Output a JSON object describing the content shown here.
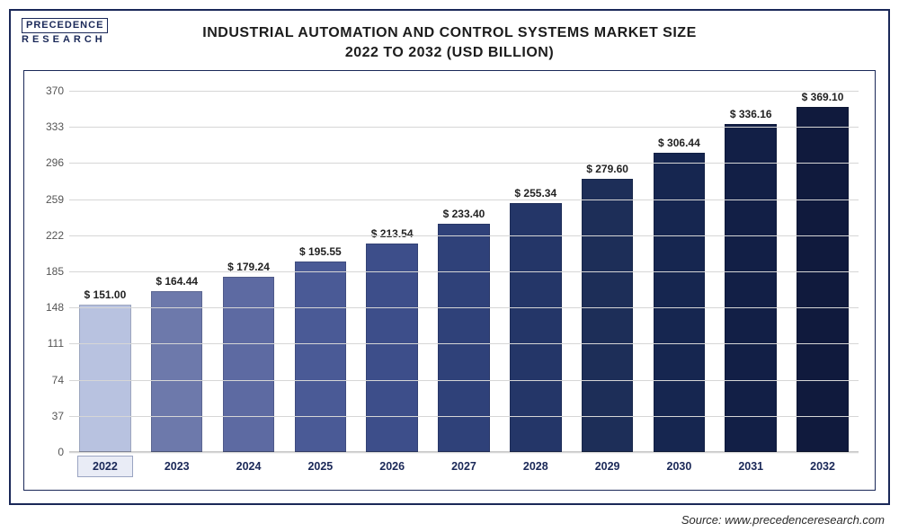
{
  "logo": {
    "line1": "PRECEDENCE",
    "line2": "RESEARCH"
  },
  "title": {
    "line1": "INDUSTRIAL AUTOMATION AND CONTROL SYSTEMS MARKET SIZE",
    "line2": "2022 TO 2032 (USD BILLION)"
  },
  "chart": {
    "type": "bar",
    "background_color": "#ffffff",
    "frame_border_color": "#1a2858",
    "grid_color": "#d6d6d6",
    "ylim": [
      0,
      370
    ],
    "yticks": [
      0,
      37,
      74,
      111,
      148,
      185,
      222,
      259,
      296,
      333,
      370
    ],
    "label_fontsize": 12,
    "value_prefix": "$ ",
    "value_fontsize": 12,
    "title_fontsize": 16,
    "bar_width": 0.72,
    "categories": [
      "2022",
      "2023",
      "2024",
      "2025",
      "2026",
      "2027",
      "2028",
      "2029",
      "2030",
      "2031",
      "2032"
    ],
    "values": [
      151.0,
      164.44,
      179.24,
      195.55,
      213.54,
      233.4,
      255.34,
      279.6,
      306.44,
      336.16,
      369.1
    ],
    "value_labels": [
      "$ 151.00",
      "$ 164.44",
      "$ 179.24",
      "$ 195.55",
      "$ 213.54",
      "$ 233.40",
      "$ 255.34",
      "$ 279.60",
      "$ 306.44",
      "$ 336.16",
      "$ 369.10"
    ],
    "bar_colors": [
      "#b8c2e0",
      "#6d79ab",
      "#5d6aa2",
      "#4a5a96",
      "#3d4e8a",
      "#2f4179",
      "#243668",
      "#1d2e58",
      "#162650",
      "#121f46",
      "#101a3d"
    ],
    "highlighted_category_index": 0,
    "x_box_bg": "#e9ecf6",
    "x_box_border": "#9aa4c2",
    "x_label_color": "#1a2858"
  },
  "source": {
    "label": "Source: www.precedenceresearch.com"
  }
}
